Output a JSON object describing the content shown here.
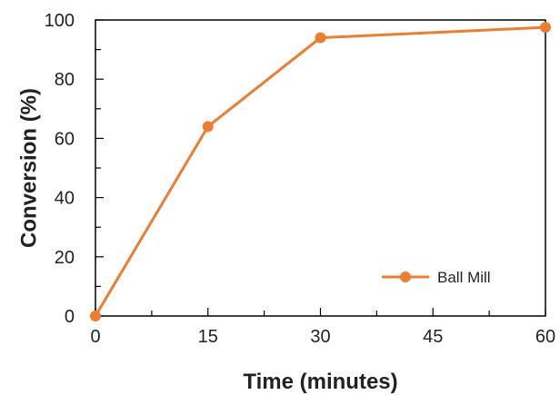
{
  "chart_data": {
    "type": "line",
    "title": "",
    "xlabel": "Time (minutes)",
    "ylabel": "Conversion (%)",
    "xlim": [
      0,
      60
    ],
    "ylim": [
      0,
      100
    ],
    "xticks": [
      0,
      15,
      30,
      45,
      60
    ],
    "yticks": [
      0,
      20,
      40,
      60,
      80,
      100
    ],
    "grid": false,
    "legend_position": "bottom-right",
    "series": [
      {
        "name": "Ball Mill",
        "color": "#ED7D31",
        "marker": "circle",
        "x": [
          0,
          15,
          30,
          60
        ],
        "y": [
          0,
          64,
          94,
          97.5
        ]
      }
    ]
  }
}
